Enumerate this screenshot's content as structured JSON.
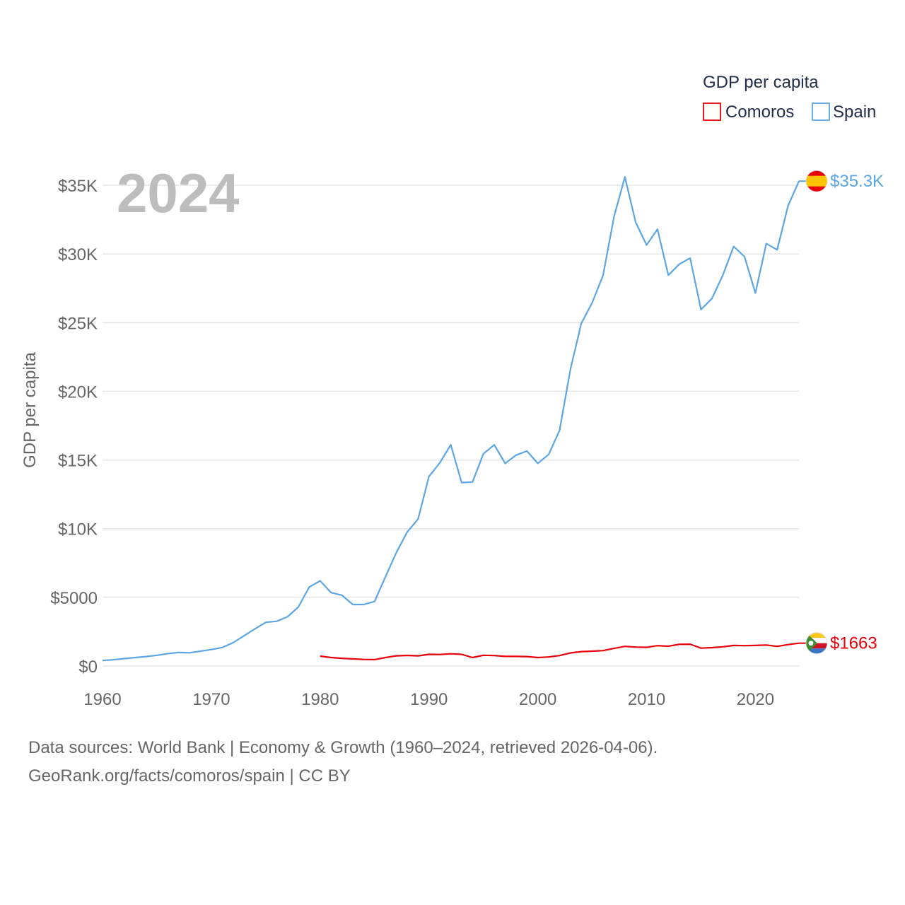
{
  "chart_data": {
    "type": "line",
    "year_label": "2024",
    "ylabel": "GDP per capita",
    "ylim": [
      0,
      37000
    ],
    "xlim": [
      1960,
      2024.5
    ],
    "x_ticks": [
      1960,
      1970,
      1980,
      1990,
      2000,
      2010,
      2020
    ],
    "y_ticks": [
      {
        "value": 0,
        "label": "$0"
      },
      {
        "value": 5000,
        "label": "$5000"
      },
      {
        "value": 10000,
        "label": "$10K"
      },
      {
        "value": 15000,
        "label": "$15K"
      },
      {
        "value": 20000,
        "label": "$20K"
      },
      {
        "value": 25000,
        "label": "$25K"
      },
      {
        "value": 30000,
        "label": "$30K"
      },
      {
        "value": 35000,
        "label": "$35K"
      }
    ],
    "legend": {
      "title": "GDP per capita",
      "items": [
        {
          "name": "Comoros",
          "color": "#e8000b"
        },
        {
          "name": "Spain",
          "color": "#5da5e3"
        }
      ],
      "position": "top-right"
    },
    "series": [
      {
        "name": "Spain",
        "color": "#5da5e3",
        "end_label": "$35.3K",
        "flag": "spain-flag",
        "x": [
          1960,
          1961,
          1962,
          1963,
          1964,
          1965,
          1966,
          1967,
          1968,
          1969,
          1970,
          1971,
          1972,
          1973,
          1974,
          1975,
          1976,
          1977,
          1978,
          1979,
          1980,
          1981,
          1982,
          1983,
          1984,
          1985,
          1986,
          1987,
          1988,
          1989,
          1990,
          1991,
          1992,
          1993,
          1994,
          1995,
          1996,
          1997,
          1998,
          1999,
          2000,
          2001,
          2002,
          2003,
          2004,
          2005,
          2006,
          2007,
          2008,
          2009,
          2010,
          2011,
          2012,
          2013,
          2014,
          2015,
          2016,
          2017,
          2018,
          2019,
          2020,
          2021,
          2022,
          2023,
          2024
        ],
        "values": [
          400,
          460,
          540,
          620,
          690,
          780,
          900,
          990,
          960,
          1080,
          1200,
          1350,
          1700,
          2200,
          2700,
          3180,
          3260,
          3580,
          4300,
          5750,
          6200,
          5350,
          5150,
          4480,
          4480,
          4700,
          6500,
          8250,
          9750,
          10700,
          13800,
          14800,
          16100,
          13350,
          13400,
          15450,
          16100,
          14750,
          15350,
          15650,
          14750,
          15400,
          17150,
          21600,
          24950,
          26450,
          28450,
          32700,
          35600,
          32300,
          30650,
          31800,
          28450,
          29250,
          29700,
          25950,
          26750,
          28450,
          30550,
          29800,
          27150,
          30750,
          30300,
          33500,
          35300
        ]
      },
      {
        "name": "Comoros",
        "color": "#e8000b",
        "end_label": "$1663",
        "flag": "comoros-flag",
        "x": [
          1980,
          1981,
          1982,
          1983,
          1984,
          1985,
          1986,
          1987,
          1988,
          1989,
          1990,
          1991,
          1992,
          1993,
          1994,
          1995,
          1996,
          1997,
          1998,
          1999,
          2000,
          2001,
          2002,
          2003,
          2004,
          2005,
          2006,
          2007,
          2008,
          2009,
          2010,
          2011,
          2012,
          2013,
          2014,
          2015,
          2016,
          2017,
          2018,
          2019,
          2020,
          2021,
          2022,
          2023,
          2024
        ],
        "values": [
          720,
          620,
          560,
          520,
          480,
          470,
          620,
          740,
          770,
          740,
          850,
          840,
          890,
          850,
          620,
          780,
          760,
          700,
          700,
          690,
          620,
          660,
          760,
          950,
          1050,
          1080,
          1120,
          1280,
          1430,
          1380,
          1360,
          1480,
          1440,
          1580,
          1590,
          1300,
          1340,
          1400,
          1500,
          1480,
          1500,
          1530,
          1430,
          1560,
          1663
        ]
      }
    ]
  },
  "footer": {
    "line1": "Data sources: World Bank | Economy & Growth (1960–2024, retrieved 2026-04-06).",
    "line2": "GeoRank.org/facts/comoros/spain | CC BY"
  }
}
